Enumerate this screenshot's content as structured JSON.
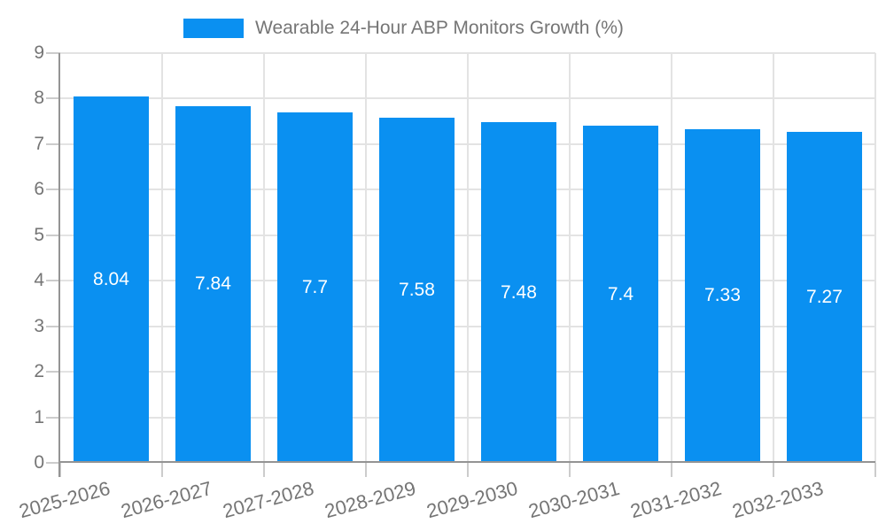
{
  "chart_data": {
    "type": "bar",
    "title": "Wearable 24-Hour ABP Monitors Growth (%)",
    "categories": [
      "2025-2026",
      "2026-2027",
      "2027-2028",
      "2028-2029",
      "2029-2030",
      "2030-2031",
      "2031-2032",
      "2032-2033"
    ],
    "series": [
      {
        "name": "Wearable 24-Hour ABP Monitors Growth (%)",
        "values": [
          8.04,
          7.84,
          7.7,
          7.58,
          7.48,
          7.4,
          7.33,
          7.27
        ],
        "value_labels": [
          "8.04",
          "7.84",
          "7.7",
          "7.58",
          "7.48",
          "7.4",
          "7.33",
          "7.27"
        ]
      }
    ],
    "xlabel": "",
    "ylabel": "",
    "ylim": [
      0,
      9
    ],
    "ytick_step": 1,
    "grid": true,
    "legend_position": "top",
    "colors": {
      "bar": "#0a90f1",
      "bar_label": "#ffffff",
      "axis_text": "#757575",
      "axis_line": "#949494",
      "gridline": "#e3e3e3",
      "tick": "#cccccc"
    }
  }
}
